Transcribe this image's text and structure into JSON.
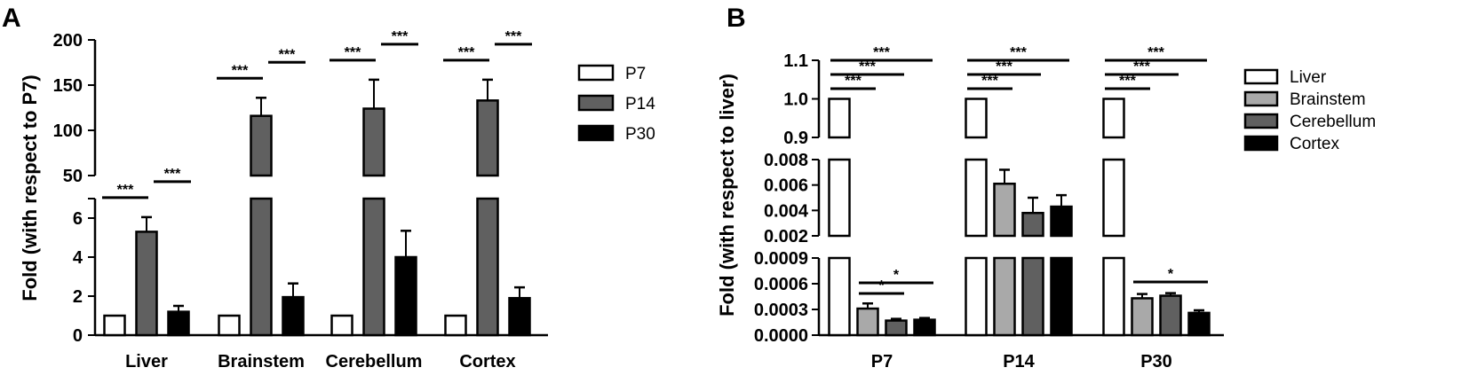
{
  "chart_data": [
    {
      "panel": "A",
      "type": "bar",
      "ylabel": "Fold (with respect to P7)",
      "categories": [
        "Liver",
        "Brainstem",
        "Cerebellum",
        "Cortex"
      ],
      "series": [
        {
          "name": "P7",
          "color": "#ffffff",
          "values": [
            1,
            1,
            1,
            1
          ],
          "errors": [
            0,
            0,
            0,
            0
          ]
        },
        {
          "name": "P14",
          "color": "#606060",
          "values": [
            5.3,
            116,
            124,
            133
          ],
          "errors": [
            0.75,
            20,
            32,
            23
          ]
        },
        {
          "name": "P30",
          "color": "#000000",
          "values": [
            1.2,
            1.95,
            4.0,
            1.9
          ],
          "errors": [
            0.3,
            0.7,
            1.35,
            0.55
          ]
        }
      ],
      "y_axis_break": {
        "lower": [
          0,
          7
        ],
        "upper": [
          50,
          200
        ]
      },
      "yticks_lower": [
        "0",
        "2",
        "4",
        "6"
      ],
      "yticks_upper": [
        "50",
        "100",
        "150",
        "200"
      ],
      "significance": "***",
      "legend_position": "right"
    },
    {
      "panel": "B",
      "type": "bar",
      "ylabel": "Fold (with respect to liver)",
      "categories": [
        "P7",
        "P14",
        "P30"
      ],
      "series": [
        {
          "name": "Liver",
          "color": "#ffffff",
          "values": [
            1,
            1,
            1
          ],
          "errors": [
            0,
            0,
            0
          ]
        },
        {
          "name": "Brainstem",
          "color": "#a9a9a9",
          "values": [
            0.00031,
            0.0061,
            0.00043
          ],
          "errors": [
            6e-05,
            0.0011,
            5e-05
          ]
        },
        {
          "name": "Cerebellum",
          "color": "#606060",
          "values": [
            0.00017,
            0.0038,
            0.00046
          ],
          "errors": [
            2e-05,
            0.0012,
            3e-05
          ]
        },
        {
          "name": "Cortex",
          "color": "#000000",
          "values": [
            0.00018,
            0.0043,
            0.00026
          ],
          "errors": [
            2e-05,
            0.0009,
            3e-05
          ]
        }
      ],
      "y_axis_segments": [
        [
          0,
          0.0009
        ],
        [
          0.002,
          0.008
        ],
        [
          0.9,
          1.1
        ]
      ],
      "yticks_low": [
        "0.0000",
        "0.0003",
        "0.0006",
        "0.0009"
      ],
      "yticks_mid": [
        "0.002",
        "0.004",
        "0.006",
        "0.008"
      ],
      "yticks_high": [
        "0.9",
        "1.0",
        "1.1"
      ],
      "significance_triple": "***",
      "significance_single": "*",
      "legend_position": "right"
    }
  ]
}
